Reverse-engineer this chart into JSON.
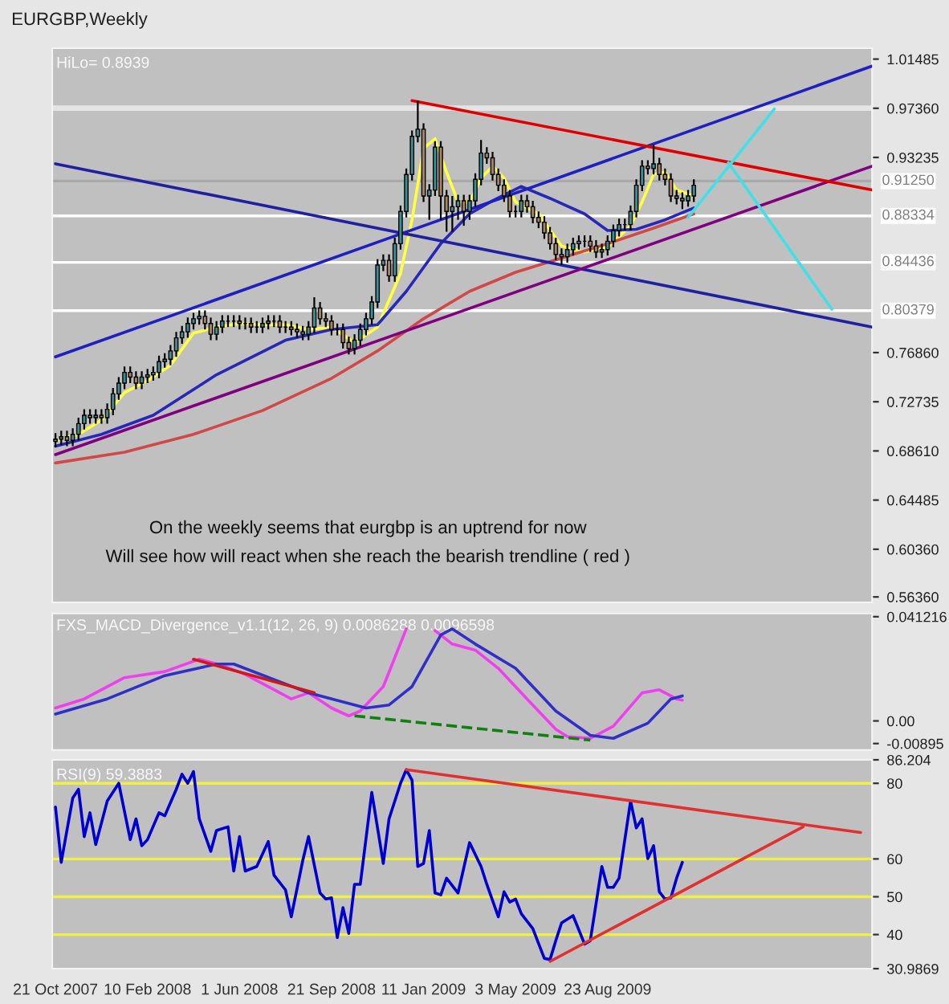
{
  "chart_data": [
    {
      "type": "candlestick",
      "title": "EURGBP,Weekly",
      "annotations": [
        "HiLo= 0.8939",
        "On the weekly seems that eurgbp is an uptrend for now",
        "Will see how will react when she reach the bearish trendline ( red )"
      ],
      "x": [
        "2007-10-21",
        "2007-10-28",
        "2007-11-04",
        "2007-11-11",
        "2007-11-18",
        "2007-11-25",
        "2007-12-02",
        "2007-12-09",
        "2007-12-16",
        "2007-12-23",
        "2007-12-30",
        "2008-01-06",
        "2008-01-13",
        "2008-01-20",
        "2008-01-27",
        "2008-02-03",
        "2008-02-10",
        "2008-02-17",
        "2008-02-24",
        "2008-03-02",
        "2008-03-09",
        "2008-03-16",
        "2008-03-23",
        "2008-03-30",
        "2008-04-06",
        "2008-04-13",
        "2008-04-20",
        "2008-04-27",
        "2008-05-04",
        "2008-05-11",
        "2008-05-18",
        "2008-05-25",
        "2008-06-01",
        "2008-06-08",
        "2008-06-15",
        "2008-06-22",
        "2008-06-29",
        "2008-07-06",
        "2008-07-13",
        "2008-07-20",
        "2008-07-27",
        "2008-08-03",
        "2008-08-10",
        "2008-08-17",
        "2008-08-24",
        "2008-08-31",
        "2008-09-07",
        "2008-09-14",
        "2008-09-21",
        "2008-09-28",
        "2008-10-05",
        "2008-10-12",
        "2008-10-19",
        "2008-10-26",
        "2008-11-02",
        "2008-11-09",
        "2008-11-16",
        "2008-11-23",
        "2008-11-30",
        "2008-12-07",
        "2008-12-14",
        "2008-12-21",
        "2008-12-28",
        "2009-01-04",
        "2009-01-11",
        "2009-01-18",
        "2009-01-25",
        "2009-02-01",
        "2009-02-08",
        "2009-02-15",
        "2009-02-22",
        "2009-03-01",
        "2009-03-08",
        "2009-03-15",
        "2009-03-22",
        "2009-03-29",
        "2009-04-05",
        "2009-04-12",
        "2009-04-19",
        "2009-04-26",
        "2009-05-03",
        "2009-05-10",
        "2009-05-17",
        "2009-05-24",
        "2009-05-31",
        "2009-06-07",
        "2009-06-14",
        "2009-06-21",
        "2009-06-28",
        "2009-07-05",
        "2009-07-12",
        "2009-07-19",
        "2009-07-26",
        "2009-08-02",
        "2009-08-09",
        "2009-08-16",
        "2009-08-23",
        "2009-08-30",
        "2009-09-06",
        "2009-09-13",
        "2009-09-20",
        "2009-09-27",
        "2009-10-04",
        "2009-10-11",
        "2009-10-18",
        "2009-10-25",
        "2009-11-01",
        "2009-11-08",
        "2009-11-15",
        "2009-11-22",
        "2009-11-29",
        "2009-12-06"
      ],
      "ohlc": [
        [
          0.694,
          0.701,
          0.689,
          0.696
        ],
        [
          0.696,
          0.703,
          0.691,
          0.698
        ],
        [
          0.698,
          0.703,
          0.69,
          0.695
        ],
        [
          0.695,
          0.705,
          0.69,
          0.7
        ],
        [
          0.7,
          0.714,
          0.695,
          0.709
        ],
        [
          0.709,
          0.721,
          0.704,
          0.716
        ],
        [
          0.716,
          0.721,
          0.709,
          0.714
        ],
        [
          0.714,
          0.721,
          0.709,
          0.716
        ],
        [
          0.716,
          0.721,
          0.709,
          0.714
        ],
        [
          0.714,
          0.726,
          0.709,
          0.721
        ],
        [
          0.721,
          0.739,
          0.716,
          0.734
        ],
        [
          0.734,
          0.748,
          0.729,
          0.743
        ],
        [
          0.743,
          0.757,
          0.738,
          0.752
        ],
        [
          0.752,
          0.757,
          0.743,
          0.748
        ],
        [
          0.748,
          0.753,
          0.738,
          0.743
        ],
        [
          0.743,
          0.753,
          0.738,
          0.748
        ],
        [
          0.748,
          0.755,
          0.743,
          0.75
        ],
        [
          0.75,
          0.757,
          0.745,
          0.752
        ],
        [
          0.752,
          0.766,
          0.747,
          0.761
        ],
        [
          0.761,
          0.768,
          0.756,
          0.763
        ],
        [
          0.763,
          0.775,
          0.758,
          0.77
        ],
        [
          0.77,
          0.786,
          0.765,
          0.781
        ],
        [
          0.781,
          0.791,
          0.776,
          0.786
        ],
        [
          0.786,
          0.798,
          0.781,
          0.793
        ],
        [
          0.793,
          0.802,
          0.788,
          0.797
        ],
        [
          0.797,
          0.804,
          0.792,
          0.799
        ],
        [
          0.799,
          0.804,
          0.788,
          0.793
        ],
        [
          0.793,
          0.798,
          0.779,
          0.784
        ],
        [
          0.784,
          0.795,
          0.779,
          0.79
        ],
        [
          0.79,
          0.8,
          0.785,
          0.795
        ],
        [
          0.795,
          0.8,
          0.79,
          0.795
        ],
        [
          0.795,
          0.8,
          0.79,
          0.795
        ],
        [
          0.795,
          0.8,
          0.788,
          0.793
        ],
        [
          0.793,
          0.798,
          0.788,
          0.793
        ],
        [
          0.793,
          0.798,
          0.785,
          0.79
        ],
        [
          0.79,
          0.795,
          0.785,
          0.79
        ],
        [
          0.79,
          0.798,
          0.785,
          0.793
        ],
        [
          0.793,
          0.8,
          0.788,
          0.795
        ],
        [
          0.795,
          0.8,
          0.79,
          0.795
        ],
        [
          0.795,
          0.8,
          0.785,
          0.79
        ],
        [
          0.79,
          0.795,
          0.785,
          0.79
        ],
        [
          0.79,
          0.795,
          0.783,
          0.788
        ],
        [
          0.788,
          0.793,
          0.781,
          0.786
        ],
        [
          0.786,
          0.791,
          0.779,
          0.784
        ],
        [
          0.784,
          0.795,
          0.779,
          0.79
        ],
        [
          0.79,
          0.815,
          0.785,
          0.806
        ],
        [
          0.806,
          0.811,
          0.792,
          0.797
        ],
        [
          0.797,
          0.802,
          0.79,
          0.795
        ],
        [
          0.795,
          0.8,
          0.783,
          0.788
        ],
        [
          0.788,
          0.793,
          0.783,
          0.788
        ],
        [
          0.788,
          0.793,
          0.772,
          0.777
        ],
        [
          0.777,
          0.782,
          0.767,
          0.772
        ],
        [
          0.772,
          0.784,
          0.767,
          0.779
        ],
        [
          0.779,
          0.793,
          0.774,
          0.788
        ],
        [
          0.788,
          0.802,
          0.783,
          0.797
        ],
        [
          0.797,
          0.816,
          0.792,
          0.811
        ],
        [
          0.811,
          0.847,
          0.806,
          0.842
        ],
        [
          0.842,
          0.851,
          0.837,
          0.846
        ],
        [
          0.846,
          0.851,
          0.828,
          0.833
        ],
        [
          0.833,
          0.865,
          0.828,
          0.86
        ],
        [
          0.86,
          0.892,
          0.855,
          0.887
        ],
        [
          0.887,
          0.923,
          0.882,
          0.918
        ],
        [
          0.918,
          0.955,
          0.913,
          0.95
        ],
        [
          0.95,
          0.98,
          0.945,
          0.956
        ],
        [
          0.956,
          0.961,
          0.895,
          0.9
        ],
        [
          0.9,
          0.91,
          0.88,
          0.905
        ],
        [
          0.905,
          0.946,
          0.9,
          0.941
        ],
        [
          0.941,
          0.946,
          0.88,
          0.9
        ],
        [
          0.9,
          0.905,
          0.87,
          0.887
        ],
        [
          0.887,
          0.9,
          0.87,
          0.891
        ],
        [
          0.891,
          0.901,
          0.88,
          0.896
        ],
        [
          0.896,
          0.901,
          0.875,
          0.887
        ],
        [
          0.887,
          0.901,
          0.88,
          0.896
        ],
        [
          0.896,
          0.919,
          0.891,
          0.914
        ],
        [
          0.914,
          0.947,
          0.909,
          0.936
        ],
        [
          0.936,
          0.941,
          0.927,
          0.932
        ],
        [
          0.932,
          0.937,
          0.913,
          0.918
        ],
        [
          0.918,
          0.923,
          0.904,
          0.909
        ],
        [
          0.909,
          0.914,
          0.895,
          0.9
        ],
        [
          0.9,
          0.905,
          0.882,
          0.887
        ],
        [
          0.887,
          0.892,
          0.882,
          0.887
        ],
        [
          0.887,
          0.901,
          0.882,
          0.896
        ],
        [
          0.896,
          0.901,
          0.886,
          0.891
        ],
        [
          0.891,
          0.896,
          0.877,
          0.882
        ],
        [
          0.882,
          0.887,
          0.873,
          0.878
        ],
        [
          0.878,
          0.883,
          0.864,
          0.869
        ],
        [
          0.869,
          0.874,
          0.855,
          0.86
        ],
        [
          0.86,
          0.865,
          0.846,
          0.851
        ],
        [
          0.851,
          0.856,
          0.842,
          0.849
        ],
        [
          0.849,
          0.86,
          0.844,
          0.855
        ],
        [
          0.855,
          0.865,
          0.85,
          0.86
        ],
        [
          0.86,
          0.867,
          0.855,
          0.862
        ],
        [
          0.862,
          0.867,
          0.857,
          0.862
        ],
        [
          0.862,
          0.867,
          0.853,
          0.858
        ],
        [
          0.858,
          0.863,
          0.848,
          0.853
        ],
        [
          0.853,
          0.86,
          0.848,
          0.855
        ],
        [
          0.855,
          0.867,
          0.85,
          0.862
        ],
        [
          0.862,
          0.876,
          0.857,
          0.871
        ],
        [
          0.871,
          0.881,
          0.866,
          0.876
        ],
        [
          0.876,
          0.881,
          0.871,
          0.876
        ],
        [
          0.876,
          0.892,
          0.871,
          0.887
        ],
        [
          0.887,
          0.914,
          0.882,
          0.909
        ],
        [
          0.909,
          0.93,
          0.904,
          0.925
        ],
        [
          0.925,
          0.93,
          0.918,
          0.923
        ],
        [
          0.923,
          0.943,
          0.918,
          0.927
        ],
        [
          0.927,
          0.932,
          0.913,
          0.918
        ],
        [
          0.918,
          0.923,
          0.909,
          0.914
        ],
        [
          0.914,
          0.919,
          0.895,
          0.9
        ],
        [
          0.9,
          0.905,
          0.893,
          0.898
        ],
        [
          0.898,
          0.903,
          0.889,
          0.896
        ],
        [
          0.896,
          0.905,
          0.891,
          0.9
        ],
        [
          0.9,
          0.914,
          0.895,
          0.909
        ]
      ],
      "series": [
        {
          "type": "line",
          "color": "#ffff40",
          "x": [
            "2007-10-21",
            "2007-11-18",
            "2007-12-16",
            "2008-01-13",
            "2008-02-10",
            "2008-03-09",
            "2008-04-06",
            "2008-05-04",
            "2008-06-01",
            "2008-06-29",
            "2008-07-27",
            "2008-08-24",
            "2008-09-21",
            "2008-10-19",
            "2008-11-16",
            "2008-12-14",
            "2008-12-28",
            "2009-01-11",
            "2009-01-25",
            "2009-02-08",
            "2009-02-22",
            "2009-03-08",
            "2009-03-22",
            "2009-04-05",
            "2009-04-19",
            "2009-05-03",
            "2009-05-31",
            "2009-06-28",
            "2009-07-26",
            "2009-08-23",
            "2009-09-20",
            "2009-10-04",
            "2009-10-18",
            "2009-11-01",
            "2009-11-15",
            "2009-12-06"
          ],
          "values": [
            0.695,
            0.7,
            0.712,
            0.735,
            0.745,
            0.758,
            0.785,
            0.79,
            0.793,
            0.792,
            0.792,
            0.788,
            0.79,
            0.777,
            0.79,
            0.835,
            0.88,
            0.94,
            0.948,
            0.92,
            0.895,
            0.895,
            0.915,
            0.925,
            0.915,
            0.895,
            0.885,
            0.858,
            0.853,
            0.857,
            0.875,
            0.895,
            0.918,
            0.92,
            0.905,
            0.9
          ]
        },
        {
          "type": "line",
          "color": "#2828b8",
          "x": [
            "2007-10-21",
            "2007-12-16",
            "2008-02-17",
            "2008-05-04",
            "2008-07-27",
            "2008-09-21",
            "2008-11-16",
            "2008-12-21",
            "2009-02-01",
            "2009-03-08",
            "2009-04-05",
            "2009-05-10",
            "2009-06-14",
            "2009-07-26",
            "2009-08-23",
            "2009-09-27",
            "2009-11-01",
            "2009-12-06"
          ],
          "values": [
            0.69,
            0.7,
            0.716,
            0.75,
            0.779,
            0.788,
            0.792,
            0.82,
            0.86,
            0.885,
            0.896,
            0.908,
            0.898,
            0.885,
            0.871,
            0.872,
            0.88,
            0.89
          ]
        },
        {
          "type": "line",
          "color": "#d04848",
          "x": [
            "2007-10-21",
            "2008-01-13",
            "2008-04-06",
            "2008-06-29",
            "2008-09-21",
            "2008-11-16",
            "2009-01-11",
            "2009-03-08",
            "2009-05-03",
            "2009-06-28",
            "2009-08-23",
            "2009-10-18",
            "2009-12-06"
          ],
          "values": [
            0.676,
            0.685,
            0.7,
            0.72,
            0.747,
            0.77,
            0.797,
            0.82,
            0.836,
            0.848,
            0.86,
            0.873,
            0.885
          ]
        },
        {
          "type": "line",
          "color": "#2020c0",
          "x": [
            "2007-10-21",
            "2010-07-11"
          ],
          "values": [
            0.765,
            1.009
          ]
        },
        {
          "type": "line",
          "color": "#2020a0",
          "x": [
            "2007-10-21",
            "2010-07-11"
          ],
          "values": [
            0.927,
            0.79
          ]
        },
        {
          "type": "line",
          "color": "#800080",
          "x": [
            "2007-10-21",
            "2010-07-11"
          ],
          "values": [
            0.683,
            0.925
          ]
        },
        {
          "type": "line",
          "color": "#e00000",
          "x": [
            "2008-12-28",
            "2010-07-11"
          ],
          "values": [
            0.98,
            0.905
          ]
        },
        {
          "type": "line",
          "color": "#40e0e8",
          "x": [
            "2009-11-29",
            "2010-03-14"
          ],
          "values": [
            0.882,
            0.973
          ]
        },
        {
          "type": "line",
          "color": "#40e0e8",
          "x": [
            "2010-01-17",
            "2010-05-23"
          ],
          "values": [
            0.928,
            0.805
          ]
        }
      ],
      "xlim": [
        "2007-10-17",
        "2010-07-11"
      ],
      "ylim": [
        0.559,
        1.024
      ],
      "yticks": [
        1.01485,
        {
          "value": 0.9736,
          "label": "0.97360"
        },
        0.93235,
        {
          "value": 0.7686,
          "label": "0.76860"
        },
        0.72735,
        {
          "value": 0.6861,
          "label": "0.68610"
        },
        0.64485,
        {
          "value": 0.6036,
          "label": "0.60360"
        },
        {
          "value": 0.5636,
          "label": "0.56360"
        }
      ],
      "ref_lines": [
        {
          "axis": "y",
          "value": 0.9125,
          "label": "0.91250",
          "color": "#a8a8a8"
        },
        {
          "axis": "y",
          "value": 0.88334,
          "label": "0.88334",
          "color": "#ffffff"
        },
        {
          "axis": "y",
          "value": 0.84436,
          "label": "0.84436",
          "color": "#ffffff"
        },
        {
          "axis": "y",
          "value": 0.80379,
          "label": "0.80379",
          "color": "#ffffff"
        }
      ],
      "bands": [
        {
          "axis": "y",
          "from": 0.9715,
          "to": 0.976,
          "color": "#e4e4e4"
        }
      ],
      "tick_labels": "y"
    },
    {
      "type": "line",
      "title": "FXS_MACD_Divergence_v1.1(12, 26, 9) 0.0086288 0.0096598",
      "series": [
        {
          "color": "#ee40ee",
          "x": [
            "2007-10-21",
            "2007-11-25",
            "2008-01-13",
            "2008-03-02",
            "2008-04-13",
            "2008-05-11",
            "2008-06-08",
            "2008-08-03",
            "2008-08-24",
            "2008-09-21",
            "2008-10-12",
            "2008-10-26",
            "2008-11-23",
            "2008-12-21",
            "2009-01-11",
            "2009-01-25",
            "2009-02-15",
            "2009-03-15",
            "2009-04-12",
            "2009-05-17",
            "2009-06-21",
            "2009-07-05",
            "2009-08-02",
            "2009-08-30",
            "2009-10-04",
            "2009-10-25",
            "2009-11-15",
            "2009-11-22"
          ],
          "values": [
            0.0051,
            0.0087,
            0.0171,
            0.0195,
            0.0244,
            0.0219,
            0.0184,
            0.0087,
            0.0111,
            0.0051,
            0.002,
            0.0039,
            0.0136,
            0.0364,
            null,
            0.0357,
            0.0304,
            0.028,
            0.0208,
            0.0087,
            -0.0033,
            -0.0062,
            -0.0069,
            -0.0021,
            0.0111,
            0.0123,
            0.0087,
            0.0082
          ]
        },
        {
          "color": "#3030c8",
          "x": [
            "2007-10-21",
            "2007-12-23",
            "2008-03-02",
            "2008-05-04",
            "2008-05-25",
            "2008-08-24",
            "2008-11-02",
            "2008-11-30",
            "2008-12-28",
            "2009-02-01",
            "2009-02-15",
            "2009-03-15",
            "2009-05-03",
            "2009-06-21",
            "2009-08-02",
            "2009-08-30",
            "2009-10-11",
            "2009-11-08",
            "2009-11-22"
          ],
          "values": [
            0.0027,
            0.0087,
            0.0179,
            0.0225,
            0.0225,
            0.0111,
            0.0051,
            0.0063,
            0.0136,
            0.034,
            0.0364,
            0.0304,
            0.0208,
            0.0039,
            -0.0057,
            -0.0069,
            -0.0009,
            0.0087,
            0.0099
          ]
        },
        {
          "color": "#d01818",
          "x": [
            "2008-04-06",
            "2008-08-31"
          ],
          "values": [
            0.0244,
            0.0111
          ]
        },
        {
          "color": "#108010",
          "line_style": "dashed",
          "x": [
            "2008-10-19",
            "2009-08-02"
          ],
          "values": [
            0.002,
            -0.0076
          ]
        }
      ],
      "xlim": [
        "2007-10-17",
        "2010-07-11"
      ],
      "ylim": [
        -0.0115,
        0.0425
      ],
      "yticks": [
        0.041216,
        {
          "value": 0,
          "label": "0.00"
        },
        {
          "value": -0.00895,
          "label": "-0.00895"
        }
      ],
      "tick_labels": "y"
    },
    {
      "type": "line",
      "title": "RSI(9) 59.3883",
      "series": [
        {
          "color": "#0000d0",
          "x": [
            "2007-10-21",
            "2007-10-28",
            "2007-11-11",
            "2007-11-18",
            "2007-11-25",
            "2007-12-02",
            "2007-12-09",
            "2007-12-23",
            "2008-01-06",
            "2008-01-20",
            "2008-01-27",
            "2008-02-03",
            "2008-02-10",
            "2008-02-24",
            "2008-03-02",
            "2008-03-16",
            "2008-03-23",
            "2008-03-30",
            "2008-04-06",
            "2008-04-13",
            "2008-04-27",
            "2008-05-04",
            "2008-05-18",
            "2008-05-25",
            "2008-06-01",
            "2008-06-08",
            "2008-06-22",
            "2008-07-06",
            "2008-07-13",
            "2008-07-27",
            "2008-08-03",
            "2008-08-17",
            "2008-08-24",
            "2008-09-07",
            "2008-09-14",
            "2008-09-21",
            "2008-09-28",
            "2008-10-05",
            "2008-10-12",
            "2008-10-19",
            "2008-10-26",
            "2008-11-09",
            "2008-11-23",
            "2008-11-30",
            "2008-12-14",
            "2008-12-21",
            "2008-12-28",
            "2009-01-04",
            "2009-01-11",
            "2009-01-18",
            "2009-01-25",
            "2009-02-01",
            "2009-02-08",
            "2009-02-22",
            "2009-03-08",
            "2009-03-22",
            "2009-03-29",
            "2009-04-12",
            "2009-04-19",
            "2009-04-26",
            "2009-05-03",
            "2009-05-10",
            "2009-05-24",
            "2009-06-07",
            "2009-06-14",
            "2009-06-21",
            "2009-06-28",
            "2009-07-12",
            "2009-07-26",
            "2009-08-02",
            "2009-08-16",
            "2009-08-23",
            "2009-08-30",
            "2009-09-06",
            "2009-09-20",
            "2009-09-27",
            "2009-10-04",
            "2009-10-11",
            "2009-10-18",
            "2009-10-25",
            "2009-11-01",
            "2009-11-08",
            "2009-11-15",
            "2009-11-22"
          ],
          "values": [
            73.7,
            59.1,
            76.1,
            78.4,
            65.9,
            72.2,
            63.8,
            75.3,
            80,
            65.1,
            70.6,
            63.5,
            65.1,
            72.2,
            71.4,
            78.4,
            82.4,
            80,
            83.1,
            70.6,
            62.0,
            67.5,
            68.5,
            56.8,
            65.9,
            56.8,
            58.0,
            64.6,
            55.7,
            51.8,
            44.7,
            59.6,
            65.9,
            51.0,
            49.4,
            49.7,
            39.2,
            47.1,
            40.3,
            53.3,
            53.3,
            77.6,
            58.8,
            70.6,
            80,
            83.6,
            80.8,
            58.0,
            58.8,
            67.5,
            51.0,
            50.5,
            54.9,
            51.0,
            64.3,
            58.0,
            53.3,
            44.7,
            51.3,
            48.6,
            49.4,
            45.5,
            41.6,
            33.7,
            33.4,
            38.4,
            43.1,
            45.0,
            37.5,
            38.4,
            58.0,
            52.5,
            52.5,
            54.9,
            75.3,
            68.2,
            70.6,
            60.1,
            63.5,
            51.3,
            49.4,
            49.7,
            54.9,
            59.1
          ]
        },
        {
          "color": "#e03030",
          "x": [
            "2008-12-21",
            "2010-06-27"
          ],
          "values": [
            83.6,
            67.0
          ]
        },
        {
          "color": "#e03030",
          "x": [
            "2009-06-14",
            "2010-04-18"
          ],
          "values": [
            32.9,
            68.5
          ]
        }
      ],
      "xlim": [
        "2007-10-17",
        "2010-07-11"
      ],
      "ylim": [
        30.9869,
        86.204
      ],
      "yticks": [
        86.204,
        80,
        60,
        50,
        40,
        30.9869
      ],
      "xticks": [
        {
          "value": "2007-10-21",
          "label": "21 Oct 2007"
        },
        {
          "value": "2008-02-10",
          "label": "10 Feb 2008"
        },
        {
          "value": "2008-06-01",
          "label": "1 Jun 2008"
        },
        {
          "value": "2008-09-21",
          "label": "21 Sep 2008"
        },
        {
          "value": "2009-01-11",
          "label": "11 Jan 2009"
        },
        {
          "value": "2009-05-03",
          "label": "3 May 2009"
        },
        {
          "value": "2009-08-23",
          "label": "23 Aug 2009"
        }
      ],
      "ref_lines": [
        {
          "axis": "y",
          "value": 80,
          "color": "#f0f040"
        },
        {
          "axis": "y",
          "value": 60,
          "color": "#f0f040"
        },
        {
          "axis": "y",
          "value": 50,
          "color": "#f0f040"
        },
        {
          "axis": "y",
          "value": 40,
          "color": "#f0f040"
        }
      ]
    }
  ]
}
